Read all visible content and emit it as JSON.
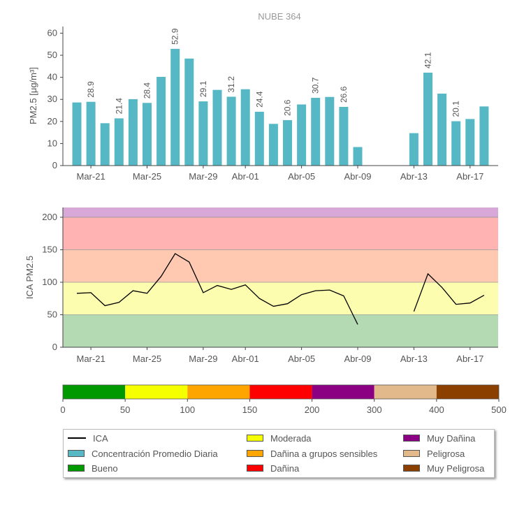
{
  "chart_data": [
    {
      "type": "bar",
      "title": "NUBE 364",
      "ylabel": "PM2.5 [μg/m³]",
      "ylim": [
        0,
        63
      ],
      "yticks": [
        0,
        10,
        20,
        30,
        40,
        50,
        60
      ],
      "series_name": "Concentración Promedio Diaria",
      "color": "#56b8c4",
      "x_tick_labels": [
        {
          "day": 2,
          "label": "Mar-21"
        },
        {
          "day": 6,
          "label": "Mar-25"
        },
        {
          "day": 10,
          "label": "Mar-29"
        },
        {
          "day": 13,
          "label": "Abr-01"
        },
        {
          "day": 17,
          "label": "Abr-05"
        },
        {
          "day": 21,
          "label": "Abr-09"
        },
        {
          "day": 25,
          "label": "Abr-13"
        },
        {
          "day": 29,
          "label": "Abr-17"
        }
      ],
      "bars": [
        {
          "day": 1,
          "value": 28.6
        },
        {
          "day": 2,
          "value": 28.9,
          "label": "28.9"
        },
        {
          "day": 3,
          "value": 19.2
        },
        {
          "day": 4,
          "value": 21.4,
          "label": "21.4"
        },
        {
          "day": 5,
          "value": 30.1
        },
        {
          "day": 6,
          "value": 28.4,
          "label": "28.4"
        },
        {
          "day": 7,
          "value": 40.2
        },
        {
          "day": 8,
          "value": 52.9,
          "label": "52.9"
        },
        {
          "day": 9,
          "value": 48.5
        },
        {
          "day": 10,
          "value": 29.1,
          "label": "29.1"
        },
        {
          "day": 11,
          "value": 34.3
        },
        {
          "day": 12,
          "value": 31.2,
          "label": "31.2"
        },
        {
          "day": 13,
          "value": 34.6
        },
        {
          "day": 14,
          "value": 24.4,
          "label": "24.4"
        },
        {
          "day": 15,
          "value": 18.9
        },
        {
          "day": 16,
          "value": 20.6,
          "label": "20.6"
        },
        {
          "day": 17,
          "value": 27.7
        },
        {
          "day": 18,
          "value": 30.7,
          "label": "30.7"
        },
        {
          "day": 19,
          "value": 31.1
        },
        {
          "day": 20,
          "value": 26.6,
          "label": "26.6"
        },
        {
          "day": 21,
          "value": 8.4
        },
        {
          "day": 25,
          "value": 14.7
        },
        {
          "day": 26,
          "value": 42.1,
          "label": "42.1"
        },
        {
          "day": 27,
          "value": 32.6
        },
        {
          "day": 28,
          "value": 20.1,
          "label": "20.1"
        },
        {
          "day": 29,
          "value": 21.1
        },
        {
          "day": 30,
          "value": 26.8
        }
      ]
    },
    {
      "type": "line",
      "ylabel": "ICA PM2.5",
      "ylim": [
        0,
        215
      ],
      "yticks": [
        0,
        50,
        100,
        150,
        200
      ],
      "x_tick_labels": [
        {
          "day": 2,
          "label": "Mar-21"
        },
        {
          "day": 6,
          "label": "Mar-25"
        },
        {
          "day": 10,
          "label": "Mar-29"
        },
        {
          "day": 13,
          "label": "Abr-01"
        },
        {
          "day": 17,
          "label": "Abr-05"
        },
        {
          "day": 21,
          "label": "Abr-09"
        },
        {
          "day": 25,
          "label": "Abr-13"
        },
        {
          "day": 29,
          "label": "Abr-17"
        }
      ],
      "bands": [
        {
          "from": 0,
          "to": 50,
          "color": "#b3dab3"
        },
        {
          "from": 50,
          "to": 100,
          "color": "#fdfdaf"
        },
        {
          "from": 100,
          "to": 150,
          "color": "#ffc8b0"
        },
        {
          "from": 150,
          "to": 200,
          "color": "#ffb3b3"
        },
        {
          "from": 200,
          "to": 215,
          "color": "#d8a8d8"
        }
      ],
      "series": [
        {
          "name": "ICA",
          "segments": [
            [
              [
                1,
                83
              ],
              [
                2,
                84
              ],
              [
                3,
                64
              ],
              [
                4,
                69
              ],
              [
                5,
                87
              ],
              [
                6,
                83
              ],
              [
                7,
                109
              ],
              [
                8,
                144
              ],
              [
                9,
                131
              ],
              [
                10,
                84
              ],
              [
                11,
                95
              ],
              [
                12,
                89
              ],
              [
                13,
                96
              ],
              [
                14,
                75
              ],
              [
                15,
                63
              ],
              [
                16,
                67
              ],
              [
                17,
                81
              ],
              [
                18,
                87
              ],
              [
                19,
                88
              ],
              [
                20,
                79
              ],
              [
                21,
                35
              ]
            ],
            [
              [
                25,
                55
              ],
              [
                26,
                113
              ],
              [
                27,
                92
              ],
              [
                28,
                66
              ],
              [
                29,
                68
              ],
              [
                30,
                80
              ]
            ]
          ]
        }
      ]
    },
    {
      "type": "colorbar",
      "ticks": [
        "0",
        "50",
        "100",
        "150",
        "200",
        "300",
        "400",
        "500"
      ],
      "segments": [
        {
          "from": "0",
          "to": "50",
          "color": "#009900"
        },
        {
          "from": "50",
          "to": "100",
          "color": "#f5ff00"
        },
        {
          "from": "100",
          "to": "150",
          "color": "#ffa500"
        },
        {
          "from": "150",
          "to": "200",
          "color": "#ff0000"
        },
        {
          "from": "200",
          "to": "300",
          "color": "#8b0082"
        },
        {
          "from": "300",
          "to": "400",
          "color": "#e2b98a"
        },
        {
          "from": "400",
          "to": "500",
          "color": "#8b4000"
        }
      ]
    }
  ],
  "legend": {
    "items": [
      {
        "label": "ICA",
        "kind": "line",
        "color": "#000000"
      },
      {
        "label": "Concentración Promedio Diaria",
        "kind": "box",
        "color": "#56b8c4"
      },
      {
        "label": "Bueno",
        "kind": "box",
        "color": "#009900"
      },
      {
        "label": "Moderada",
        "kind": "box",
        "color": "#f5ff00"
      },
      {
        "label": "Dañina a grupos sensibles",
        "kind": "box",
        "color": "#ffa500"
      },
      {
        "label": "Dañina",
        "kind": "box",
        "color": "#ff0000"
      },
      {
        "label": "Muy Dañina",
        "kind": "box",
        "color": "#8b0082"
      },
      {
        "label": "Peligrosa",
        "kind": "box",
        "color": "#e2b98a"
      },
      {
        "label": "Muy Peligrosa",
        "kind": "box",
        "color": "#8b4000"
      }
    ]
  }
}
